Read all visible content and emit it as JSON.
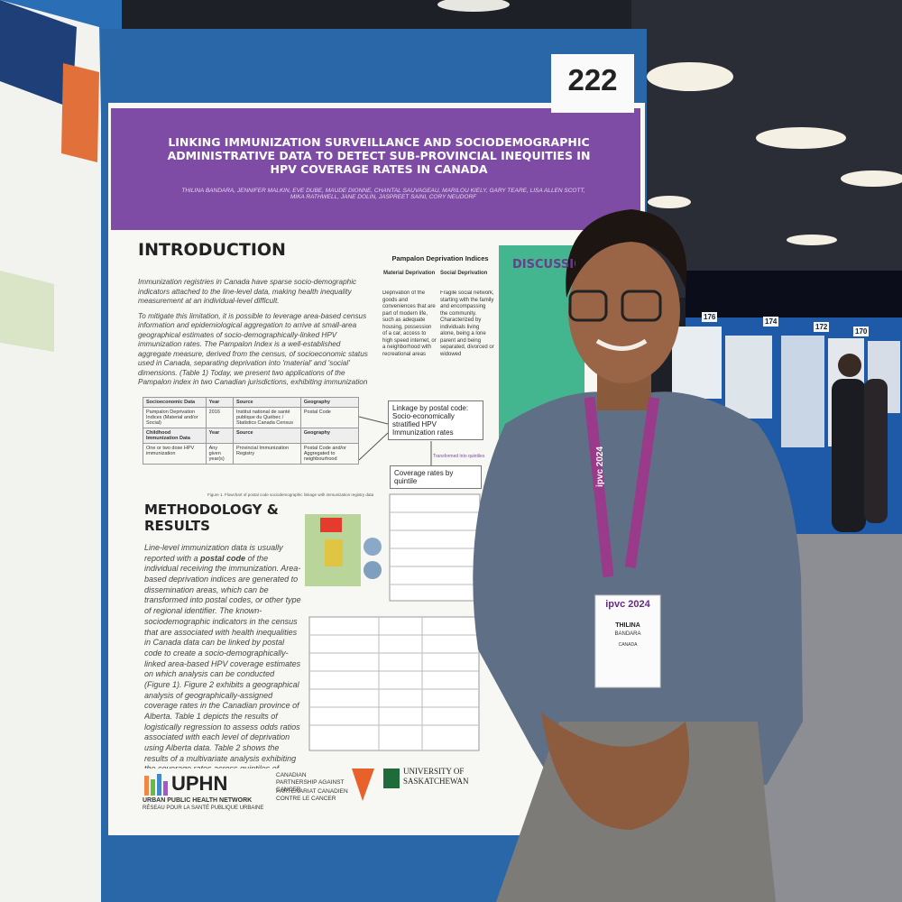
{
  "booth_number": "222",
  "other_booths": [
    "176",
    "174",
    "172",
    "170"
  ],
  "poster": {
    "title": "LINKING IMMUNIZATION SURVEILLANCE AND SOCIODEMOGRAPHIC ADMINISTRATIVE DATA TO DETECT SUB-PROVINCIAL INEQUITIES IN HPV COVERAGE RATES IN CANADA",
    "authors": "THILINA BANDARA, JENNIFER MALKIN, EVE DUBE, MAUDE DIONNE, CHANTAL SAUVAGEAU, MARILOU KIELY, GARY TEARE, LISA ALLEN SCOTT, MIKA RATHWELL, JANE DOLIN, JASPREET SAINI, CORY NEUDORF",
    "introduction": {
      "heading": "INTRODUCTION",
      "paragraphs": [
        "Immunization registries in Canada have sparse socio-demographic indicators attached to the line-level data, making health inequality measurement at an individual-level difficult.",
        "To mitigate this limitation, it is possible to leverage area-based census information and epidemiological aggregation to arrive at small-area geographical estimates of socio-demographically-linked HPV immunization rates. The Pampalon Index is a well-established aggregate measure, derived from the census, of socioeconomic status used in Canada, separating deprivation into 'material' and 'social' dimensions. (Table 1) Today, we present two applications of the Pampalon index in two Canadian jurisdictions, exhibiting immunization inequities."
      ]
    },
    "pampalon": {
      "heading": "Pampalon Deprivation Indices",
      "material_heading": "Material Deprivation",
      "social_heading": "Social Deprivation",
      "material_text": "Deprivation of the goods and conveniences that are part of modern life, such as adequate housing, possession of a car, access to high speed internet, or a neighborhood with recreational areas",
      "social_text": "Fragile social network, starting with the family and encompassing the community. Characterized by individuals living alone, being a lone parent and being separated, divorced or widowed"
    },
    "table1": {
      "header1": [
        "Socioeconomic Data",
        "Year",
        "Source",
        "Geography"
      ],
      "row1": [
        "Pampalon Deprivation Indices (Material and/or Social)",
        "2016",
        "Institut national de santé publique du Québec / Statistics Canada Census",
        "Postal Code"
      ],
      "header2": [
        "Childhood Immunization Data",
        "Year",
        "Source",
        "Geography"
      ],
      "row2": [
        "One or two dose HPV immunization",
        "Any given year(s)",
        "Provincial Immunization Registry",
        "Postal Code and/or Aggregated to neighbourhood"
      ]
    },
    "flow": {
      "linkage": "Linkage by postal code: Socio-economically stratified HPV Immunization rates",
      "transformed": "Transformed into quintiles",
      "coverage": "Coverage rates by quintile"
    },
    "figure1_caption": "Figure 1. Flowchart of postal code sociodemographic linkage with immunization registry data",
    "methodology": {
      "heading": "METHODOLOGY & RESULTS",
      "text_before": "Line-level immunization data is usually reported with a ",
      "text_bold": "postal code",
      "text_after": " of the individual receiving the immunization. Area-based deprivation indices are generated to dissemination areas, which can be transformed into postal codes, or other type of regional identifier. The known-sociodemographic indicators in the census that are associated with health inequalities in Canada data can be linked by postal code to create a socio-demographically-linked area-based HPV coverage estimates on which analysis can be conducted (Figure 1). Figure 2 exhibits a geographical analysis of geographically-assigned coverage rates in the Canadian province of Alberta. Table 1 depicts the results of logistically regression to assess odds ratios associated with each level of deprivation using Alberta data. Table 2 shows the results of a multivariate analysis exhibiting the coverage rates across quintiles of deprivation for a similar analysis run in Quebec, Canada."
    },
    "discussion_heading": "DISCUSSION",
    "logos": {
      "uphn": "UPHN",
      "uphn_en": "URBAN PUBLIC HEALTH NETWORK",
      "uphn_fr": "RÉSEAU POUR LA SANTÉ PUBLIQUE URBAINE",
      "cpac_en": "CANADIAN PARTNERSHIP AGAINST CANCER",
      "cpac_fr": "PARTENARIAT CANADIEN CONTRE LE CANCER",
      "usask": "UNIVERSITY OF SASKATCHEWAN"
    }
  },
  "badge": {
    "event": "ipvc 2024",
    "first_name": "THILINA",
    "last_name": "BANDARA",
    "country": "CANADA"
  },
  "lanyard": "ipvc 2024"
}
